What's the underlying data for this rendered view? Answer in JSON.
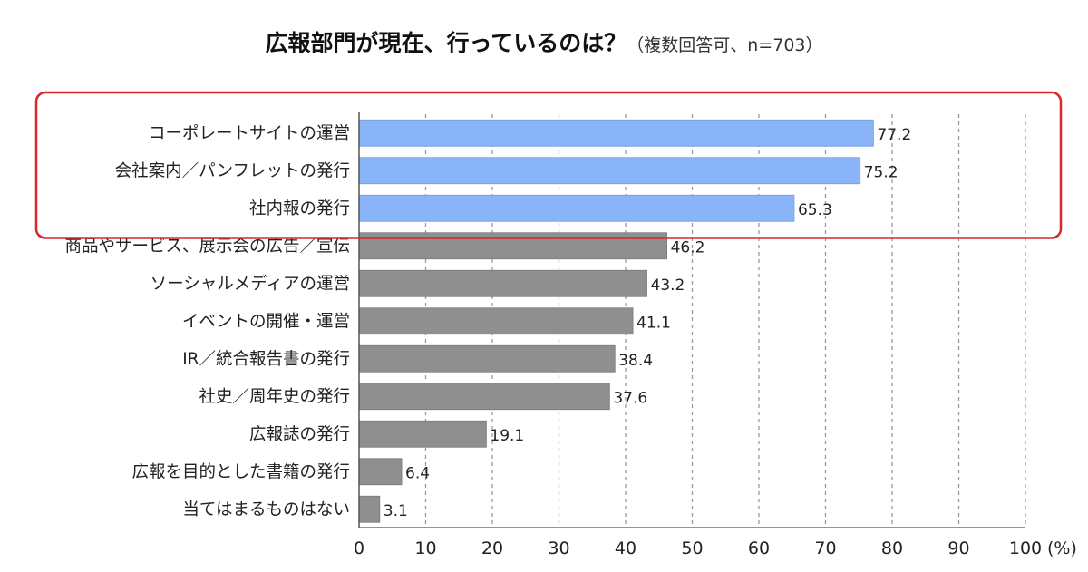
{
  "chart_data": {
    "type": "bar",
    "orientation": "horizontal",
    "title": "広報部門が現在、行っているのは？",
    "subtitle": "（複数回答可、n=703）",
    "categories": [
      "コーポレートサイトの運営",
      "会社案内／パンフレットの発行",
      "社内報の発行",
      "商品やサービス、展示会の広告／宣伝",
      "ソーシャルメディアの運営",
      "イベントの開催・運営",
      "IR／統合報告書の発行",
      "社史／周年史の発行",
      "広報誌の発行",
      "広報を目的とした書籍の発行",
      "当てはまるものはない"
    ],
    "values": [
      77.2,
      75.2,
      65.3,
      46.2,
      43.2,
      41.1,
      38.4,
      37.6,
      19.1,
      6.4,
      3.1
    ],
    "value_labels": [
      "77.2",
      "75.2",
      "65.3",
      "46.2",
      "43.2",
      "41.1",
      "38.4",
      "37.6",
      "19.1",
      "6.4",
      "3.1"
    ],
    "highlighted_count": 3,
    "xlim": [
      0,
      100
    ],
    "xticks": [
      "0",
      "10",
      "20",
      "30",
      "40",
      "50",
      "60",
      "70",
      "80",
      "90",
      "100"
    ],
    "xunit": "(%)",
    "xlabel": "",
    "ylabel": "",
    "grid": "vertical dashed",
    "legend": "none",
    "colors": {
      "highlight_bar": "#8ab4f8",
      "highlight_bar_stroke": "#6f9be0",
      "bar": "#8f8f8f",
      "bar_stroke": "#7a7a7a",
      "highlight_box": "#d9272e",
      "grid": "#9a9a9a",
      "axis": "#555555"
    }
  }
}
